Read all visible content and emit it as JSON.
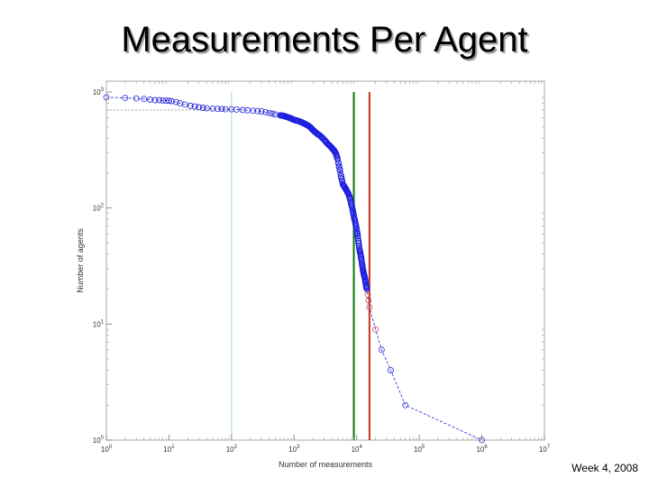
{
  "slide": {
    "title": "Measurements Per Agent",
    "footer": "Week 4, 2008"
  },
  "chart_data": {
    "type": "line",
    "title": "",
    "xlabel": "Number of measurements",
    "ylabel": "Number of agents",
    "x_scale": "log",
    "y_scale": "log",
    "xlim": [
      1,
      10000000
    ],
    "ylim": [
      1,
      1000
    ],
    "grid": false,
    "x_ticks": [
      {
        "value": 1,
        "base": "10",
        "exp": "0"
      },
      {
        "value": 10,
        "base": "10",
        "exp": "1"
      },
      {
        "value": 100,
        "base": "10",
        "exp": "2"
      },
      {
        "value": 1000,
        "base": "10",
        "exp": "3"
      },
      {
        "value": 10000,
        "base": "10",
        "exp": "4"
      },
      {
        "value": 100000,
        "base": "10",
        "exp": "5"
      },
      {
        "value": 1000000,
        "base": "10",
        "exp": "6"
      },
      {
        "value": 10000000,
        "base": "10",
        "exp": "7"
      }
    ],
    "y_ticks": [
      {
        "value": 1,
        "base": "10",
        "exp": "0"
      },
      {
        "value": 10,
        "base": "10",
        "exp": "1"
      },
      {
        "value": 100,
        "base": "10",
        "exp": "2"
      },
      {
        "value": 1000,
        "base": "10",
        "exp": "3"
      }
    ],
    "series": [
      {
        "color": "#2424d8",
        "marker": "circle",
        "style": "dashed-with-markers",
        "x": [
          1,
          2,
          3,
          4,
          5,
          6,
          7,
          8,
          9,
          10,
          11,
          13,
          15,
          18,
          22,
          26,
          30,
          35,
          40,
          50,
          60,
          70,
          80,
          100,
          120,
          150,
          180,
          220,
          260,
          300,
          350,
          400,
          450,
          500,
          600,
          700,
          800,
          900,
          1000,
          1200,
          1400,
          1600,
          1800,
          2000,
          2300,
          2600,
          3000,
          3400,
          3800,
          4200,
          4600,
          5000,
          5500,
          6000,
          6500,
          7000,
          7500,
          8000,
          8500,
          9000,
          9500,
          10000,
          10500,
          11000,
          11500,
          12000,
          12500,
          13000,
          13500,
          14000,
          14500,
          15000,
          15500,
          16000,
          20000,
          25000,
          35000,
          60000,
          1000000
        ],
        "y": [
          900,
          890,
          880,
          870,
          860,
          850,
          850,
          845,
          840,
          840,
          835,
          820,
          800,
          780,
          760,
          750,
          740,
          730,
          725,
          720,
          715,
          715,
          710,
          710,
          705,
          700,
          695,
          690,
          685,
          680,
          670,
          660,
          650,
          640,
          630,
          620,
          605,
          590,
          575,
          560,
          540,
          520,
          500,
          470,
          440,
          420,
          390,
          360,
          340,
          320,
          300,
          260,
          200,
          160,
          150,
          140,
          130,
          115,
          100,
          85,
          75,
          65,
          55,
          45,
          40,
          35,
          30,
          27,
          25,
          22,
          20,
          18,
          16,
          14,
          9,
          6,
          4,
          2,
          1
        ]
      }
    ],
    "vertical_lines": [
      {
        "x": 100,
        "color": "#a8d4e6"
      },
      {
        "x": 9000,
        "color": "#0a7a0a"
      },
      {
        "x": 16000,
        "color": "#c8321e"
      }
    ],
    "horizontal_lines": [
      {
        "y": 700,
        "color": "#9a9a9a",
        "style": "dotted"
      }
    ]
  }
}
